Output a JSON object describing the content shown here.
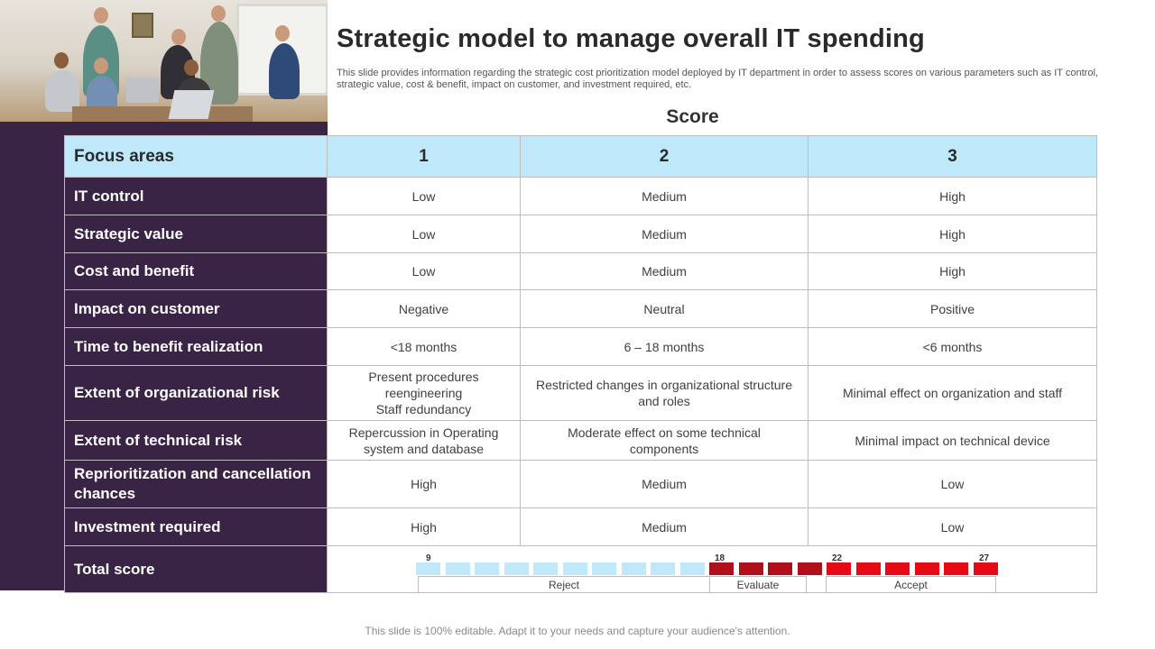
{
  "title": "Strategic model to manage overall IT spending",
  "description": "This slide provides information regarding the strategic cost prioritization model deployed by IT department in order to assess scores on various parameters such as IT control, strategic value, cost & benefit, impact on customer, and investment required, etc.",
  "score_label": "Score",
  "header": {
    "focus": "Focus areas",
    "c1": "1",
    "c2": "2",
    "c3": "3"
  },
  "rows": [
    {
      "label": "IT control",
      "c1": [
        "Low"
      ],
      "c2": [
        "Medium"
      ],
      "c3": [
        "High"
      ]
    },
    {
      "label": "Strategic value",
      "c1": [
        "Low"
      ],
      "c2": [
        "Medium"
      ],
      "c3": [
        "High"
      ]
    },
    {
      "label": "Cost and benefit",
      "c1": [
        "Low"
      ],
      "c2": [
        "Medium"
      ],
      "c3": [
        "High"
      ]
    },
    {
      "label": "Impact on customer",
      "c1": [
        "Negative"
      ],
      "c2": [
        "Neutral"
      ],
      "c3": [
        "Positive"
      ]
    },
    {
      "label": "Time to benefit realization",
      "c1": [
        "<18 months"
      ],
      "c2": [
        "6 – 18 months"
      ],
      "c3": [
        "<6 months"
      ]
    },
    {
      "label": "Extent of organizational risk",
      "c1": [
        "Present procedures",
        "reengineering",
        "Staff redundancy"
      ],
      "c2": [
        "Restricted changes in organizational structure",
        "and roles"
      ],
      "c3": [
        "Minimal effect on organization and staff"
      ]
    },
    {
      "label": "Extent of technical risk",
      "c1": [
        "Repercussion in Operating",
        "system and database"
      ],
      "c2": [
        "Moderate effect on some technical",
        "components"
      ],
      "c3": [
        "Minimal impact on technical device"
      ]
    },
    {
      "label": "Reprioritization and cancellation chances",
      "c1": [
        "High"
      ],
      "c2": [
        "Medium"
      ],
      "c3": [
        "Low"
      ]
    },
    {
      "label": "Investment required",
      "c1": [
        "High"
      ],
      "c2": [
        "Medium"
      ],
      "c3": [
        "Low"
      ]
    }
  ],
  "total": {
    "label": "Total score",
    "markers": [
      "9",
      "18",
      "22",
      "27"
    ],
    "zones": [
      "Reject",
      "Evaluate",
      "Accept"
    ],
    "colors": {
      "reject": "#bfe8fb",
      "evaluate": "#b0101a",
      "accept": "#e50a14"
    }
  },
  "footer": "This slide is 100% editable. Adapt it to your needs and capture your audience's attention."
}
